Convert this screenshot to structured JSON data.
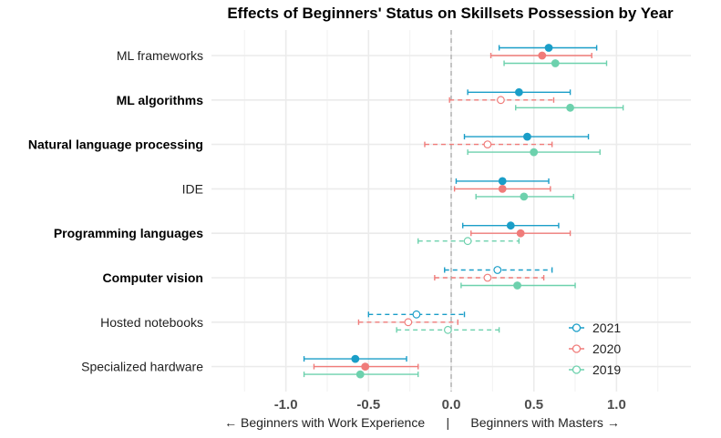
{
  "chart_data": {
    "type": "errorbar-dotplot",
    "title": "Effects of Beginners' Status on Skillsets Possession by Year",
    "xlabel": "← Beginners with Work Experience      |      Beginners with Masters →",
    "xlim": [
      -1.45,
      1.45
    ],
    "x_ticks": [
      -1.0,
      -0.5,
      0.0,
      0.5,
      1.0
    ],
    "x_tick_labels": [
      "-1.0",
      "-0.5",
      "0.0",
      "0.5",
      "1.0"
    ],
    "reference_line": 0.0,
    "categories": [
      "ML frameworks",
      "ML algorithms",
      "Natural language processing",
      "IDE",
      "Programming languages",
      "Computer vision",
      "Hosted notebooks",
      "Specialized hardware"
    ],
    "bold_categories": [
      "ML algorithms",
      "Natural language processing",
      "Programming languages",
      "Computer vision"
    ],
    "series": [
      {
        "name": "2021",
        "color": "#1a9ec8",
        "points": [
          {
            "category": "ML frameworks",
            "estimate": 0.59,
            "low": 0.29,
            "high": 0.88,
            "significant": true
          },
          {
            "category": "ML algorithms",
            "estimate": 0.41,
            "low": 0.1,
            "high": 0.72,
            "significant": true
          },
          {
            "category": "Natural language processing",
            "estimate": 0.46,
            "low": 0.08,
            "high": 0.83,
            "significant": true
          },
          {
            "category": "IDE",
            "estimate": 0.31,
            "low": 0.03,
            "high": 0.59,
            "significant": true
          },
          {
            "category": "Programming languages",
            "estimate": 0.36,
            "low": 0.07,
            "high": 0.65,
            "significant": true
          },
          {
            "category": "Computer vision",
            "estimate": 0.28,
            "low": -0.04,
            "high": 0.61,
            "significant": false
          },
          {
            "category": "Hosted notebooks",
            "estimate": -0.21,
            "low": -0.5,
            "high": 0.08,
            "significant": false
          },
          {
            "category": "Specialized hardware",
            "estimate": -0.58,
            "low": -0.89,
            "high": -0.27,
            "significant": true
          }
        ]
      },
      {
        "name": "2020",
        "color": "#f07c7a",
        "points": [
          {
            "category": "ML frameworks",
            "estimate": 0.55,
            "low": 0.24,
            "high": 0.85,
            "significant": true
          },
          {
            "category": "ML algorithms",
            "estimate": 0.3,
            "low": -0.01,
            "high": 0.62,
            "significant": false
          },
          {
            "category": "Natural language processing",
            "estimate": 0.22,
            "low": -0.16,
            "high": 0.61,
            "significant": false
          },
          {
            "category": "IDE",
            "estimate": 0.31,
            "low": 0.02,
            "high": 0.6,
            "significant": true
          },
          {
            "category": "Programming languages",
            "estimate": 0.42,
            "low": 0.12,
            "high": 0.72,
            "significant": true
          },
          {
            "category": "Computer vision",
            "estimate": 0.22,
            "low": -0.1,
            "high": 0.56,
            "significant": false
          },
          {
            "category": "Hosted notebooks",
            "estimate": -0.26,
            "low": -0.56,
            "high": 0.04,
            "significant": false
          },
          {
            "category": "Specialized hardware",
            "estimate": -0.52,
            "low": -0.83,
            "high": -0.2,
            "significant": true
          }
        ]
      },
      {
        "name": "2019",
        "color": "#6dd1ad",
        "points": [
          {
            "category": "ML frameworks",
            "estimate": 0.63,
            "low": 0.32,
            "high": 0.94,
            "significant": true
          },
          {
            "category": "ML algorithms",
            "estimate": 0.72,
            "low": 0.39,
            "high": 1.04,
            "significant": true
          },
          {
            "category": "Natural language processing",
            "estimate": 0.5,
            "low": 0.1,
            "high": 0.9,
            "significant": true
          },
          {
            "category": "IDE",
            "estimate": 0.44,
            "low": 0.15,
            "high": 0.74,
            "significant": true
          },
          {
            "category": "Programming languages",
            "estimate": 0.1,
            "low": -0.2,
            "high": 0.41,
            "significant": false
          },
          {
            "category": "Computer vision",
            "estimate": 0.4,
            "low": 0.06,
            "high": 0.75,
            "significant": true
          },
          {
            "category": "Hosted notebooks",
            "estimate": -0.02,
            "low": -0.33,
            "high": 0.29,
            "significant": false
          },
          {
            "category": "Specialized hardware",
            "estimate": -0.55,
            "low": -0.89,
            "high": -0.2,
            "significant": true
          }
        ]
      }
    ],
    "legend": {
      "position": "bottom-right",
      "entries": [
        "2021",
        "2020",
        "2019"
      ]
    },
    "grid": true
  }
}
